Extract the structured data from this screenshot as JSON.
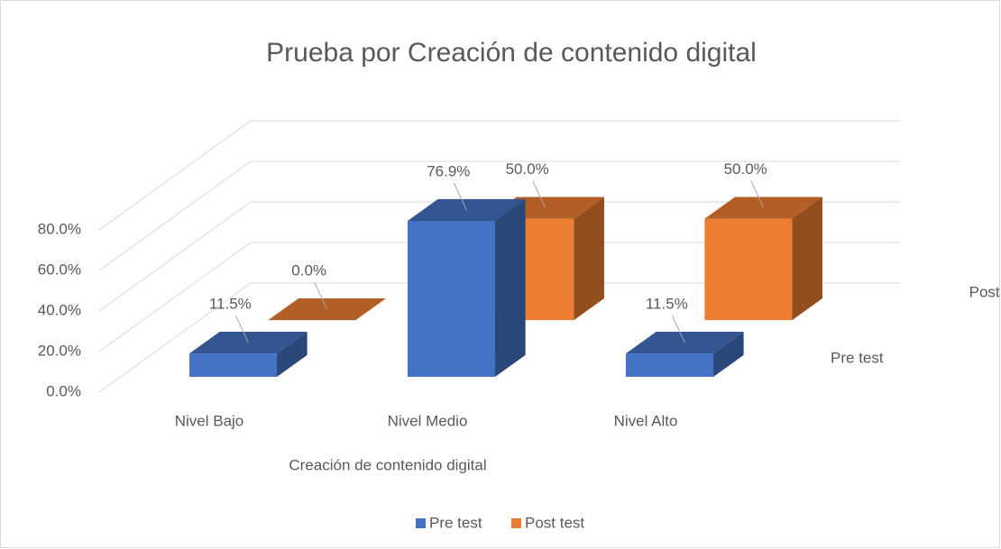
{
  "chart_data": {
    "type": "bar3d",
    "title": "Prueba por Creación de contenido digital",
    "x_label": "Creación de contenido digital",
    "categories": [
      "Nivel Bajo",
      "Nivel Medio",
      "Nivel Alto"
    ],
    "series": [
      {
        "name": "Pre test",
        "color": "#4472c4",
        "values": [
          11.5,
          76.9,
          11.5
        ],
        "value_labels": [
          "11.5%",
          "76.9%",
          "11.5%"
        ]
      },
      {
        "name": "Post test",
        "color": "#ed7d31",
        "values": [
          0,
          50,
          50
        ],
        "value_labels": [
          "0.0%",
          "50.0%",
          "50.0%"
        ]
      }
    ],
    "ylim": [
      0,
      80
    ],
    "yticks": [
      {
        "value": 0,
        "label": "0.0%"
      },
      {
        "value": 20,
        "label": "20.0%"
      },
      {
        "value": 40,
        "label": "40.0%"
      },
      {
        "value": 60,
        "label": "60.0%"
      },
      {
        "value": 80,
        "label": "80.0%"
      }
    ],
    "grid": true,
    "legend": "bottom"
  }
}
